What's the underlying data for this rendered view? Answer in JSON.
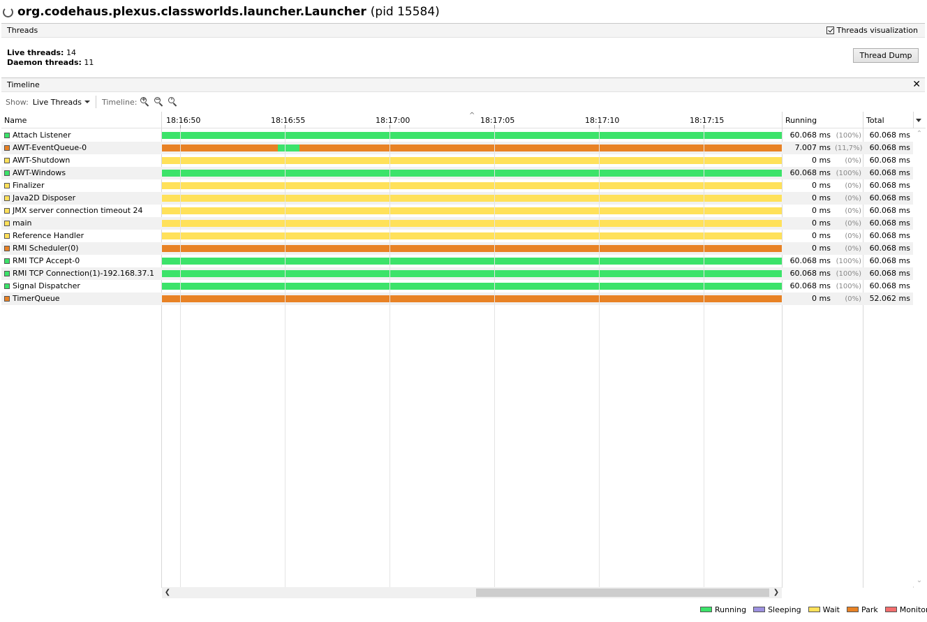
{
  "window": {
    "app_name": "org.codehaus.plexus.classworlds.launcher.Launcher",
    "pid_text": "(pid 15584)"
  },
  "threads_section": {
    "title": "Threads",
    "visualization_label": "Threads visualization",
    "visualization_checked": true
  },
  "summary": {
    "live_label": "Live threads:",
    "live_value": "14",
    "daemon_label": "Daemon threads:",
    "daemon_value": "11",
    "thread_dump_label": "Thread Dump"
  },
  "timeline_section": {
    "title": "Timeline",
    "close_glyph": "✕"
  },
  "toolbar": {
    "show_label": "Show:",
    "show_value": "Live Threads",
    "timeline_label": "Timeline:",
    "zoom_in_icon": "zoom-in-icon",
    "zoom_out_icon": "zoom-out-icon",
    "zoom_fit_icon": "zoom-fit-icon"
  },
  "table": {
    "col_name": "Name",
    "col_running": "Running",
    "col_total": "Total",
    "ticks": [
      "18:16:50",
      "18:16:55",
      "18:17:00",
      "18:17:05",
      "18:17:10",
      "18:17:15"
    ],
    "rows": [
      {
        "name": "Attach Listener",
        "state": "running",
        "running": "60.068 ms",
        "pct": "(100%)",
        "total": "60.068 ms"
      },
      {
        "name": "AWT-EventQueue-0",
        "state": "park",
        "running": "7.007 ms",
        "pct": "(11,7%)",
        "total": "60.068 ms"
      },
      {
        "name": "AWT-Shutdown",
        "state": "wait",
        "running": "0 ms",
        "pct": "(0%)",
        "total": "60.068 ms"
      },
      {
        "name": "AWT-Windows",
        "state": "running",
        "running": "60.068 ms",
        "pct": "(100%)",
        "total": "60.068 ms"
      },
      {
        "name": "Finalizer",
        "state": "wait",
        "running": "0 ms",
        "pct": "(0%)",
        "total": "60.068 ms"
      },
      {
        "name": "Java2D Disposer",
        "state": "wait",
        "running": "0 ms",
        "pct": "(0%)",
        "total": "60.068 ms"
      },
      {
        "name": "JMX server connection timeout 24",
        "state": "wait",
        "running": "0 ms",
        "pct": "(0%)",
        "total": "60.068 ms"
      },
      {
        "name": "main",
        "state": "wait",
        "running": "0 ms",
        "pct": "(0%)",
        "total": "60.068 ms"
      },
      {
        "name": "Reference Handler",
        "state": "wait",
        "running": "0 ms",
        "pct": "(0%)",
        "total": "60.068 ms"
      },
      {
        "name": "RMI Scheduler(0)",
        "state": "park",
        "running": "0 ms",
        "pct": "(0%)",
        "total": "60.068 ms"
      },
      {
        "name": "RMI TCP Accept-0",
        "state": "running",
        "running": "60.068 ms",
        "pct": "(100%)",
        "total": "60.068 ms"
      },
      {
        "name": "RMI TCP Connection(1)-192.168.37.1",
        "state": "running",
        "running": "60.068 ms",
        "pct": "(100%)",
        "total": "60.068 ms"
      },
      {
        "name": "Signal Dispatcher",
        "state": "running",
        "running": "60.068 ms",
        "pct": "(100%)",
        "total": "60.068 ms"
      },
      {
        "name": "TimerQueue",
        "state": "park",
        "running": "0 ms",
        "pct": "(0%)",
        "total": "52.062 ms"
      }
    ]
  },
  "legend": [
    {
      "label": "Running",
      "color": "#3ce36a"
    },
    {
      "label": "Sleeping",
      "color": "#9d91e0"
    },
    {
      "label": "Wait",
      "color": "#ffe15a"
    },
    {
      "label": "Park",
      "color": "#e88225"
    },
    {
      "label": "Monitor",
      "color": "#f26e6e"
    }
  ],
  "colors": {
    "running": "#3ce36a",
    "sleeping": "#9d91e0",
    "wait": "#ffe15a",
    "park": "#e88225",
    "monitor": "#f26e6e"
  }
}
